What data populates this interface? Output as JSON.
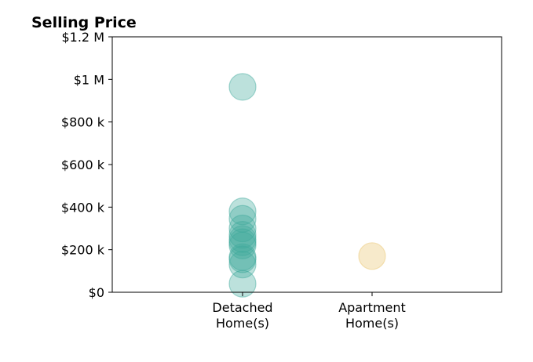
{
  "chart_data": {
    "type": "scatter",
    "title": "Selling Price",
    "xlabel": "",
    "ylabel": "",
    "categories": [
      [
        "Detached",
        "Home(s)"
      ],
      [
        "Apartment",
        "Home(s)"
      ]
    ],
    "ylim": [
      0,
      1200000
    ],
    "yticks": [
      {
        "value": 0,
        "label": "$0"
      },
      {
        "value": 200000,
        "label": "$200 k"
      },
      {
        "value": 400000,
        "label": "$400 k"
      },
      {
        "value": 600000,
        "label": "$600 k"
      },
      {
        "value": 800000,
        "label": "$800 k"
      },
      {
        "value": 1000000,
        "label": "$1 M"
      },
      {
        "value": 1200000,
        "label": "$1.2 M"
      }
    ],
    "grid": false,
    "series": [
      {
        "category": 0,
        "color": "#3fa99b",
        "values": [
          965000,
          380000,
          345000,
          300000,
          270000,
          250000,
          235000,
          220000,
          165000,
          155000,
          130000,
          40000
        ]
      },
      {
        "category": 1,
        "color": "#e9c46a",
        "values": [
          170000
        ]
      }
    ]
  }
}
